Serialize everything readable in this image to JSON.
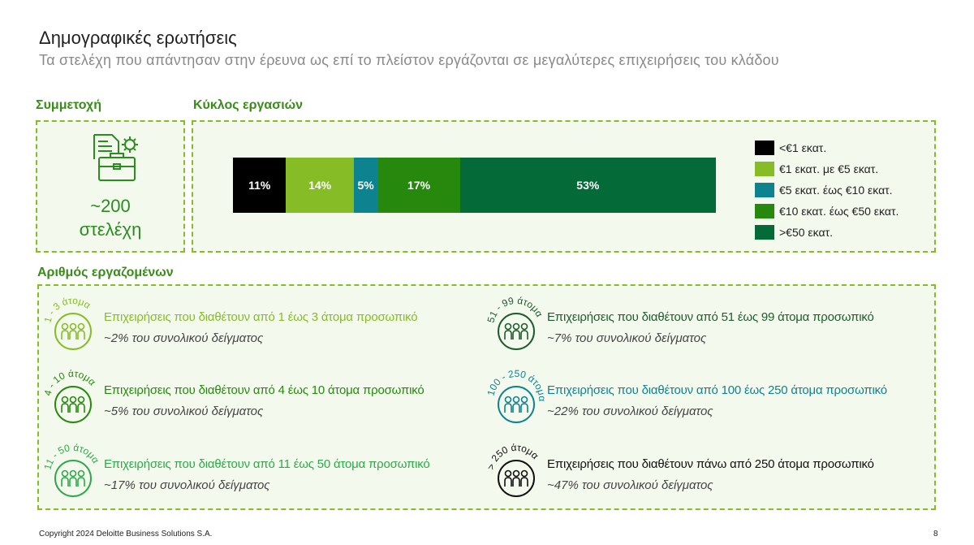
{
  "header": {
    "title": "Δημογραφικές ερωτήσεις",
    "subtitle": "Τα στελέχη που απάντησαν στην έρευνα ως επί το πλείστον εργάζονται σε μεγαλύτερες επιχειρήσεις του κλάδου"
  },
  "participation": {
    "label": "Συμμετοχή",
    "count": "~200",
    "unit": "στελέχη",
    "icon": "briefcase-document-icon"
  },
  "turnover": {
    "label": "Κύκλος εργασιών"
  },
  "chart_data": {
    "type": "bar",
    "orientation": "horizontal-stacked",
    "title": "Κύκλος εργασιών",
    "categories": [
      "Κύκλος εργασιών"
    ],
    "series": [
      {
        "name": "<€1 εκατ.",
        "values": [
          11
        ],
        "label": "11%",
        "color": "#000000"
      },
      {
        "name": "€1 εκατ. με €5 εκατ.",
        "values": [
          14
        ],
        "label": "14%",
        "color": "#86bc25"
      },
      {
        "name": "€5 εκατ. έως €10 εκατ.",
        "values": [
          5
        ],
        "label": "5%",
        "color": "#0d8390"
      },
      {
        "name": "€10 εκατ. έως €50 εκατ.",
        "values": [
          17
        ],
        "label": "17%",
        "color": "#26890d"
      },
      {
        "name": ">€50 εκατ.",
        "values": [
          53
        ],
        "label": "53%",
        "color": "#046a38"
      }
    ],
    "unit": "%",
    "legend": "right"
  },
  "employees": {
    "label": "Αριθμός εργαζομένων",
    "items": [
      {
        "range": "1 - 3 άτομα",
        "title": "Επιχειρήσεις που διαθέτουν από 1 έως 3 άτομα προσωπικό",
        "share": "~2% του συνολικού δείγματος",
        "color": "#86bc25",
        "icon": "people-group-icon"
      },
      {
        "range": "4 - 10 άτομα",
        "title": "Επιχειρήσεις που διαθέτουν από 4 έως 10 άτομα προσωπικό",
        "share": "~5% του συνολικού δείγματος",
        "color": "#26890d",
        "icon": "people-group-icon"
      },
      {
        "range": "11 - 50 άτομα",
        "title": "Επιχειρήσεις που διαθέτουν από 11 έως 50 άτομα προσωπικό",
        "share": "~17% του συνολικού δείγματος",
        "color": "#2ea84a",
        "icon": "people-group-icon"
      },
      {
        "range": "51 - 99 άτομα",
        "title": "Επιχειρήσεις που διαθέτουν από 51 έως 99 άτομα προσωπικό",
        "share": "~7% του συνολικού δείγματος",
        "color": "#1e5b2e",
        "icon": "people-group-icon"
      },
      {
        "range": "100 - 250 άτομα",
        "title": "Επιχειρήσεις που διαθέτουν από 100 έως 250 άτομα προσωπικό",
        "share": "~22% του συνολικού δείγματος",
        "color": "#0d8390",
        "icon": "people-group-icon"
      },
      {
        "range": "> 250 άτομα",
        "title": "Επιχειρήσεις που διαθέτουν πάνω από 250 άτομα προσωπικό",
        "share": "~47% του συνολικού δείγματος",
        "color": "#111111",
        "icon": "people-group-icon"
      }
    ]
  },
  "footer": {
    "copyright": "Copyright 2024 Deloitte Business Solutions S.A.",
    "page": "8"
  }
}
